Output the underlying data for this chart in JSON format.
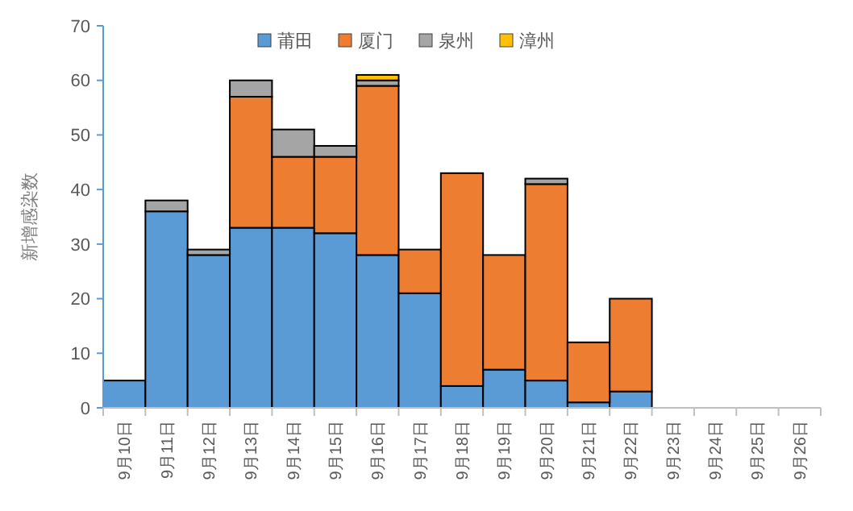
{
  "chart_data": {
    "type": "bar",
    "stacked": true,
    "ylabel": "新增感染数",
    "categories": [
      "9月10日",
      "9月11日",
      "9月12日",
      "9月13日",
      "9月14日",
      "9月15日",
      "9月16日",
      "9月17日",
      "9月18日",
      "9月19日",
      "9月20日",
      "9月21日",
      "9月22日",
      "9月23日",
      "9月24日",
      "9月25日",
      "9月26日"
    ],
    "series": [
      {
        "name": "莆田",
        "color": "#5b9bd5",
        "values": [
          5,
          36,
          28,
          33,
          33,
          32,
          28,
          21,
          4,
          7,
          5,
          1,
          3,
          0,
          0,
          0,
          0
        ]
      },
      {
        "name": "厦门",
        "color": "#ed7d31",
        "values": [
          0,
          0,
          0,
          24,
          13,
          14,
          31,
          8,
          39,
          21,
          36,
          11,
          17,
          0,
          0,
          0,
          0
        ]
      },
      {
        "name": "泉州",
        "color": "#a5a5a5",
        "values": [
          0,
          2,
          1,
          3,
          5,
          2,
          1,
          0,
          0,
          0,
          1,
          0,
          0,
          0,
          0,
          0,
          0
        ]
      },
      {
        "name": "漳州",
        "color": "#ffc000",
        "values": [
          0,
          0,
          0,
          0,
          0,
          0,
          1,
          0,
          0,
          0,
          0,
          0,
          0,
          0,
          0,
          0,
          0
        ]
      }
    ],
    "ylim": [
      0,
      70
    ],
    "yticks": [
      0,
      10,
      20,
      30,
      40,
      50,
      60,
      70
    ],
    "grid": false,
    "legend": "top"
  }
}
